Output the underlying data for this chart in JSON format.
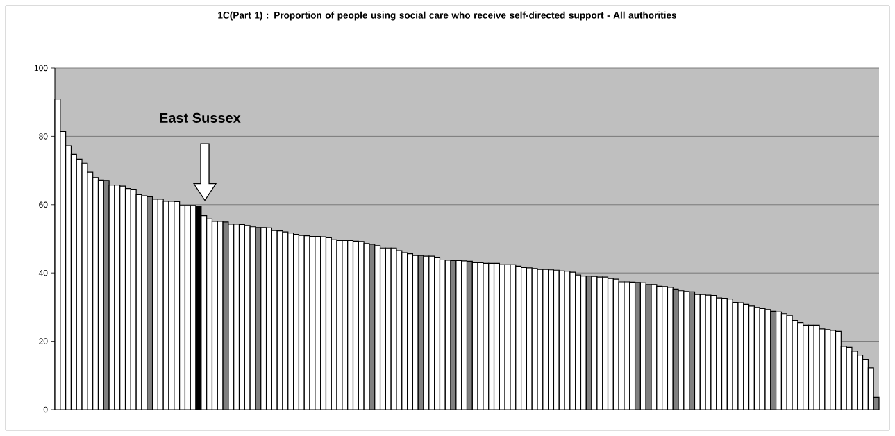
{
  "chart_data": {
    "type": "bar",
    "title": "1C(Part 1) : Proportion of people using social care who receive self-directed support - All authorities",
    "categories": [
      null,
      null,
      null,
      null,
      null,
      null,
      null,
      null,
      null,
      null,
      null,
      null,
      null,
      null,
      null,
      null,
      null,
      null,
      null,
      null,
      null,
      null,
      null,
      null,
      null,
      null,
      null,
      null,
      null,
      null,
      null,
      null,
      null,
      null,
      null,
      null,
      null,
      null,
      null,
      null,
      null,
      null,
      null,
      null,
      null,
      null,
      null,
      null,
      null,
      null,
      null,
      null,
      null,
      null,
      null,
      null,
      null,
      null,
      null,
      null,
      null,
      null,
      null,
      null,
      null,
      null,
      null,
      null,
      null,
      null,
      null,
      null,
      null,
      null,
      null,
      null,
      null,
      null,
      null,
      null,
      null,
      null,
      null,
      null,
      null,
      null,
      null,
      null,
      null,
      null,
      null,
      null,
      null,
      null,
      null,
      null,
      null,
      null,
      null,
      null,
      null,
      null,
      null,
      null,
      null,
      null,
      null,
      null,
      null,
      null,
      null,
      null,
      null,
      null,
      null,
      null,
      null,
      null,
      null,
      null,
      null,
      null,
      null,
      null,
      null,
      null,
      null,
      null,
      null,
      null,
      null,
      null,
      null,
      null,
      null,
      null,
      null,
      null,
      null,
      null,
      null,
      null,
      null,
      null,
      null,
      null,
      null,
      null,
      null,
      null,
      null,
      null
    ],
    "values": [
      90.9,
      81.4,
      77.2,
      74.7,
      73.3,
      72.1,
      69.5,
      67.9,
      67.2,
      67.1,
      65.7,
      65.7,
      65.4,
      64.7,
      64.5,
      62.9,
      62.6,
      62.3,
      61.6,
      61.6,
      61.0,
      61.0,
      60.9,
      59.8,
      59.8,
      59.8,
      59.6,
      56.8,
      55.8,
      55.1,
      55.1,
      54.9,
      54.3,
      54.3,
      54.2,
      53.9,
      53.5,
      53.3,
      53.3,
      53.2,
      52.4,
      52.3,
      52.0,
      51.7,
      51.3,
      51.0,
      50.9,
      50.7,
      50.7,
      50.6,
      50.3,
      49.7,
      49.5,
      49.5,
      49.5,
      49.3,
      49.2,
      48.6,
      48.4,
      48.0,
      47.3,
      47.3,
      47.3,
      46.5,
      45.9,
      45.6,
      45.1,
      45.1,
      44.9,
      44.9,
      44.6,
      43.8,
      43.7,
      43.6,
      43.6,
      43.5,
      43.4,
      43.0,
      43.0,
      42.8,
      42.8,
      42.8,
      42.4,
      42.4,
      42.4,
      42.0,
      41.6,
      41.5,
      41.3,
      41.0,
      41.0,
      40.9,
      40.8,
      40.6,
      40.5,
      40.2,
      39.4,
      39.1,
      39.1,
      39.0,
      38.8,
      38.8,
      38.4,
      38.2,
      37.4,
      37.4,
      37.3,
      37.2,
      37.1,
      36.6,
      36.6,
      36.1,
      36.0,
      35.8,
      35.3,
      34.8,
      34.6,
      34.5,
      33.7,
      33.7,
      33.5,
      33.4,
      32.7,
      32.6,
      32.4,
      31.4,
      31.3,
      30.8,
      30.3,
      29.9,
      29.6,
      29.3,
      28.8,
      28.6,
      28.1,
      27.6,
      26.1,
      25.5,
      24.7,
      24.7,
      24.7,
      23.6,
      23.4,
      23.2,
      22.9,
      18.5,
      18.2,
      17.1,
      15.9,
      14.7,
      12.2,
      3.6
    ],
    "colors": [
      "#ffffff",
      "#ffffff",
      "#ffffff",
      "#ffffff",
      "#ffffff",
      "#ffffff",
      "#ffffff",
      "#ffffff",
      "#ffffff",
      "#808080",
      "#ffffff",
      "#ffffff",
      "#ffffff",
      "#ffffff",
      "#ffffff",
      "#ffffff",
      "#ffffff",
      "#808080",
      "#ffffff",
      "#ffffff",
      "#ffffff",
      "#ffffff",
      "#ffffff",
      "#ffffff",
      "#ffffff",
      "#ffffff",
      "#000000",
      "#ffffff",
      "#ffffff",
      "#ffffff",
      "#ffffff",
      "#808080",
      "#ffffff",
      "#ffffff",
      "#ffffff",
      "#ffffff",
      "#ffffff",
      "#808080",
      "#ffffff",
      "#ffffff",
      "#ffffff",
      "#ffffff",
      "#ffffff",
      "#ffffff",
      "#ffffff",
      "#ffffff",
      "#ffffff",
      "#ffffff",
      "#ffffff",
      "#ffffff",
      "#ffffff",
      "#ffffff",
      "#ffffff",
      "#ffffff",
      "#ffffff",
      "#ffffff",
      "#ffffff",
      "#ffffff",
      "#808080",
      "#ffffff",
      "#ffffff",
      "#ffffff",
      "#ffffff",
      "#ffffff",
      "#ffffff",
      "#ffffff",
      "#ffffff",
      "#808080",
      "#ffffff",
      "#ffffff",
      "#ffffff",
      "#ffffff",
      "#ffffff",
      "#808080",
      "#ffffff",
      "#ffffff",
      "#808080",
      "#ffffff",
      "#ffffff",
      "#ffffff",
      "#ffffff",
      "#ffffff",
      "#ffffff",
      "#ffffff",
      "#ffffff",
      "#ffffff",
      "#ffffff",
      "#ffffff",
      "#ffffff",
      "#ffffff",
      "#ffffff",
      "#ffffff",
      "#ffffff",
      "#ffffff",
      "#ffffff",
      "#ffffff",
      "#ffffff",
      "#ffffff",
      "#808080",
      "#ffffff",
      "#ffffff",
      "#ffffff",
      "#ffffff",
      "#ffffff",
      "#ffffff",
      "#ffffff",
      "#ffffff",
      "#808080",
      "#ffffff",
      "#808080",
      "#ffffff",
      "#ffffff",
      "#ffffff",
      "#ffffff",
      "#808080",
      "#ffffff",
      "#ffffff",
      "#808080",
      "#ffffff",
      "#ffffff",
      "#ffffff",
      "#ffffff",
      "#ffffff",
      "#ffffff",
      "#ffffff",
      "#ffffff",
      "#ffffff",
      "#ffffff",
      "#ffffff",
      "#ffffff",
      "#ffffff",
      "#ffffff",
      "#808080",
      "#ffffff",
      "#ffffff",
      "#ffffff",
      "#ffffff",
      "#ffffff",
      "#ffffff",
      "#ffffff",
      "#ffffff",
      "#ffffff",
      "#ffffff",
      "#ffffff",
      "#ffffff",
      "#ffffff",
      "#ffffff",
      "#ffffff",
      "#ffffff",
      "#ffffff",
      "#ffffff",
      "#808080"
    ],
    "ylim": [
      0,
      100
    ],
    "yticks": [
      0,
      20,
      40,
      60,
      80,
      100
    ],
    "grid": "y",
    "tick_labels": "y",
    "annotations": [
      "East Sussex"
    ]
  }
}
